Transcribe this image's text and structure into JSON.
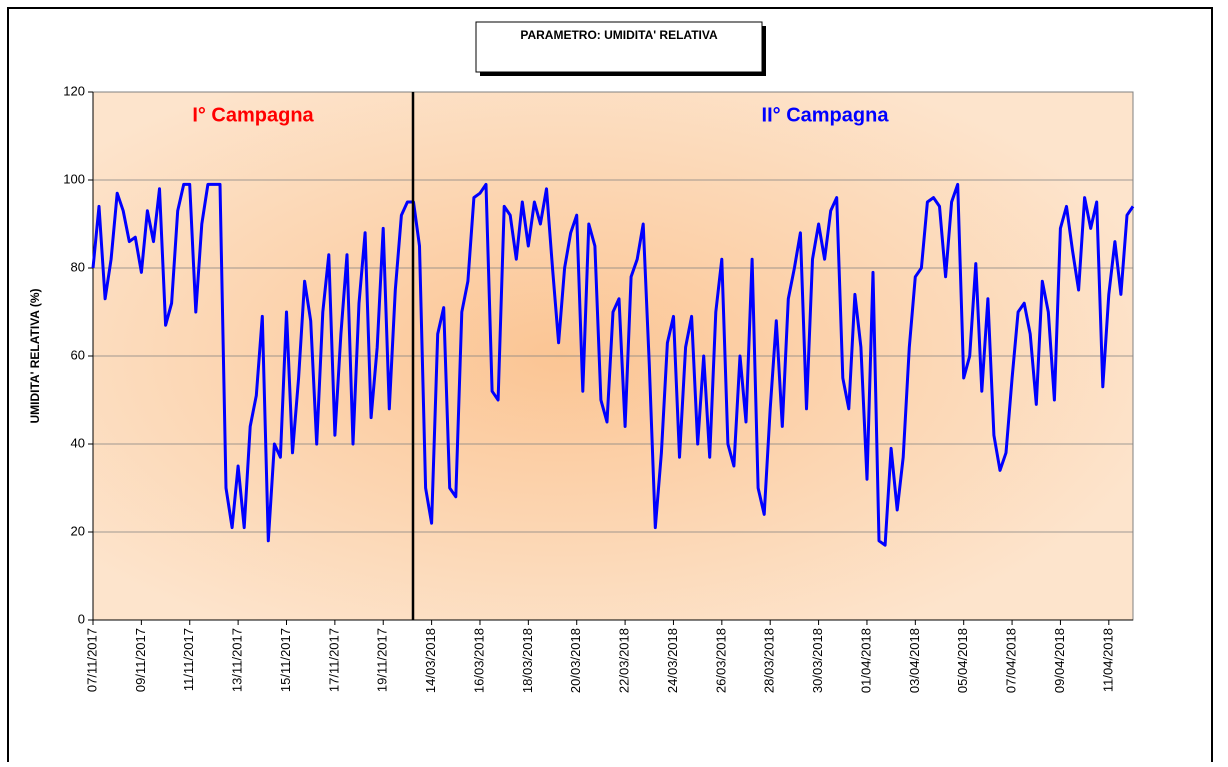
{
  "chart_data": {
    "type": "line",
    "title": "PARAMETRO: UMIDITA' RELATIVA",
    "y_label": "UMIDITA' RELATIVA (%)",
    "annotations": [
      {
        "text": "I° Campagna",
        "color": "#ff0000"
      },
      {
        "text": "II° Campagna",
        "color": "#0000ff"
      }
    ],
    "x": [
      0,
      0.25,
      0.5,
      0.75,
      1,
      1.25,
      1.5,
      1.75,
      2,
      2.25,
      2.5,
      2.75,
      3,
      3.25,
      3.5,
      3.75,
      4,
      4.25,
      4.5,
      4.75,
      5,
      5.25,
      5.5,
      5.75,
      6,
      6.25,
      6.5,
      6.75,
      7,
      7.25,
      7.5,
      7.75,
      8,
      8.25,
      8.5,
      8.75,
      9,
      9.25,
      9.5,
      9.75,
      10,
      10.25,
      10.5,
      10.75,
      11,
      11.25,
      11.5,
      11.75,
      12,
      12.25,
      12.5,
      12.75,
      13,
      13.25,
      13.5,
      13.75,
      14,
      14.25,
      14.5,
      14.75,
      15,
      15.25,
      15.5,
      15.75,
      16,
      16.25,
      16.5,
      16.75,
      17,
      17.25,
      17.5,
      17.75,
      18,
      18.25,
      18.5,
      18.75,
      19,
      19.25,
      19.5,
      19.75,
      20,
      20.25,
      20.5,
      20.75,
      21,
      21.25,
      21.5,
      21.75,
      22,
      22.25,
      22.5,
      22.75,
      23,
      23.25,
      23.5,
      23.75,
      24,
      24.25,
      24.5,
      24.75,
      25,
      25.25,
      25.5,
      25.75,
      26,
      26.25,
      26.5,
      26.75,
      27,
      27.25,
      27.5,
      27.75,
      28,
      28.25,
      28.5,
      28.75,
      29,
      29.25,
      29.5,
      29.75,
      30,
      30.25,
      30.5,
      30.75,
      31,
      31.25,
      31.5,
      31.75,
      32,
      32.25,
      32.5,
      32.75,
      33,
      33.25,
      33.5,
      33.75,
      34,
      34.25,
      34.5,
      34.75,
      35,
      35.25,
      35.5,
      35.75,
      36,
      36.25,
      36.5,
      36.75,
      37,
      37.25,
      37.5,
      37.75,
      38,
      38.25,
      38.5,
      38.75,
      39,
      39.25,
      39.5,
      39.75,
      40,
      40.25,
      40.5,
      40.75,
      41,
      41.25,
      41.5,
      41.75,
      42,
      42.25,
      42.5,
      42.75,
      43
    ],
    "series": [
      {
        "color": "#0000ff",
        "values": [
          80,
          94,
          73,
          82,
          97,
          93,
          86,
          87,
          79,
          93,
          86,
          98,
          67,
          72,
          93,
          99,
          99,
          70,
          90,
          99,
          99,
          99,
          30,
          21,
          35,
          21,
          44,
          51,
          69,
          18,
          40,
          37,
          70,
          38,
          55,
          77,
          68,
          40,
          70,
          83,
          42,
          65,
          83,
          40,
          72,
          88,
          46,
          62,
          89,
          48,
          75,
          92,
          95,
          95,
          85,
          30,
          22,
          65,
          71,
          30,
          28,
          70,
          77,
          96,
          97,
          99,
          52,
          50,
          94,
          92,
          82,
          95,
          85,
          95,
          90,
          98,
          80,
          63,
          80,
          88,
          92,
          52,
          90,
          85,
          50,
          45,
          70,
          73,
          44,
          78,
          82,
          90,
          58,
          21,
          38,
          63,
          69,
          37,
          62,
          69,
          40,
          60,
          37,
          70,
          82,
          40,
          35,
          60,
          45,
          82,
          30,
          24,
          48,
          68,
          44,
          73,
          80,
          88,
          48,
          82,
          90,
          82,
          93,
          96,
          55,
          48,
          74,
          62,
          32,
          79,
          18,
          17,
          39,
          25,
          37,
          62,
          78,
          80,
          95,
          96,
          94,
          78,
          95,
          99,
          55,
          60,
          81,
          52,
          73,
          42,
          34,
          38,
          55,
          70,
          72,
          65,
          49,
          77,
          70,
          50,
          89,
          94,
          84,
          75,
          96,
          89,
          95,
          53,
          74,
          86,
          74,
          92,
          94
        ]
      }
    ],
    "xlim": [
      0,
      43
    ],
    "xticks": [
      {
        "value": 0,
        "label": "07/11/2017"
      },
      {
        "value": 2,
        "label": "09/11/2017"
      },
      {
        "value": 4,
        "label": "11/11/2017"
      },
      {
        "value": 6,
        "label": "13/11/2017"
      },
      {
        "value": 8,
        "label": "15/11/2017"
      },
      {
        "value": 10,
        "label": "17/11/2017"
      },
      {
        "value": 12,
        "label": "19/11/2017"
      },
      {
        "value": 14,
        "label": "14/03/2018"
      },
      {
        "value": 16,
        "label": "16/03/2018"
      },
      {
        "value": 18,
        "label": "18/03/2018"
      },
      {
        "value": 20,
        "label": "20/03/2018"
      },
      {
        "value": 22,
        "label": "22/03/2018"
      },
      {
        "value": 24,
        "label": "24/03/2018"
      },
      {
        "value": 26,
        "label": "26/03/2018"
      },
      {
        "value": 28,
        "label": "28/03/2018"
      },
      {
        "value": 30,
        "label": "30/03/2018"
      },
      {
        "value": 32,
        "label": "01/04/2018"
      },
      {
        "value": 34,
        "label": "03/04/2018"
      },
      {
        "value": 36,
        "label": "05/04/2018"
      },
      {
        "value": 38,
        "label": "07/04/2018"
      },
      {
        "value": 40,
        "label": "09/04/2018"
      },
      {
        "value": 42,
        "label": "11/04/2018"
      }
    ],
    "ylim": [
      0,
      120
    ],
    "yticks": [
      0,
      20,
      40,
      60,
      80,
      100,
      120
    ],
    "grid": true
  }
}
